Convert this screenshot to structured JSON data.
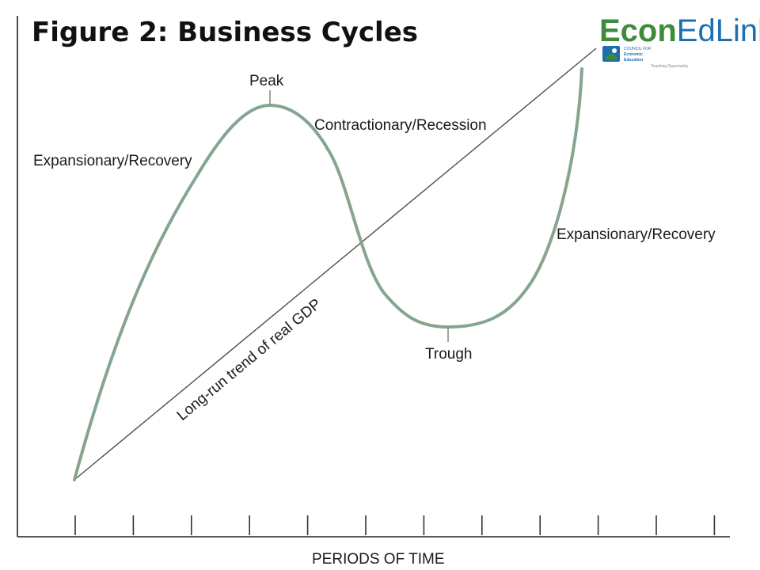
{
  "figure": {
    "title": "Figure 2: Business Cycles"
  },
  "logo": {
    "part1": "Econ",
    "part2": "EdLink",
    "sub1": "COUNCIL FOR",
    "sub2": "Economic",
    "sub3": "Education",
    "tagline": "Teaching Opportunity",
    "green": "#3e8c3b",
    "blue": "#1d6fb0"
  },
  "labels": {
    "peak": "Peak",
    "trough": "Trough",
    "expansion_left": "Expansionary/Recovery",
    "contraction": "Contractionary/Recession",
    "expansion_right": "Expansionary/Recovery",
    "trend": "Long-run trend of real GDP"
  },
  "axis": {
    "x_title": "PERIODS OF TIME",
    "tick_count": 12
  },
  "colors": {
    "curve": "#86a58f",
    "trend": "#4d4d4d",
    "axis": "#222222"
  }
}
